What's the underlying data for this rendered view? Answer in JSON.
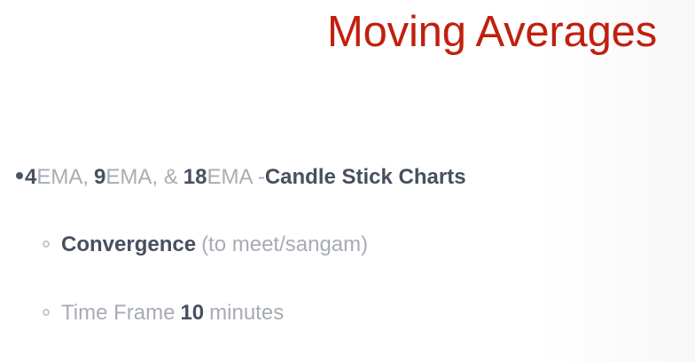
{
  "title": "Moving Averages",
  "bullet_main": {
    "ema4": "4",
    "ema4_label": " EMA,",
    "ema9": "9",
    "ema9_label": " EMA, &",
    "ema18": "18",
    "ema18_label": " EMA - ",
    "chart_type": "Candle Stick Charts"
  },
  "sub_items": [
    {
      "strong": "Convergence",
      "text": "(to meet/sangam)"
    },
    {
      "prefix": "Time Frame",
      "strong": "10",
      "suffix": "minutes"
    }
  ]
}
